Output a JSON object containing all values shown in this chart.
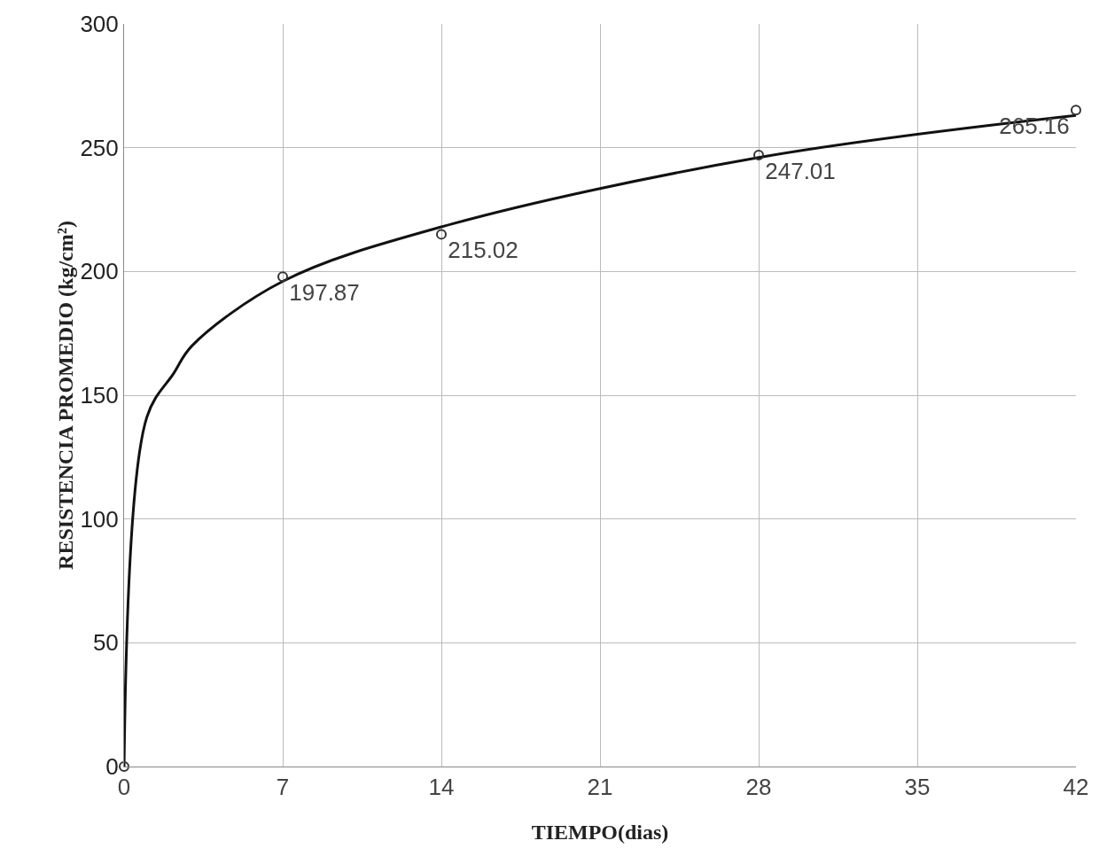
{
  "chart_data": {
    "type": "scatter",
    "xlabel": "TIEMPO(dias)",
    "ylabel": "RESISTENCIA PROMEDIO (kg/cm²)",
    "xlim": [
      0,
      42
    ],
    "xticks": [
      0,
      7,
      14,
      21,
      28,
      35,
      42
    ],
    "ylim": [
      0,
      300
    ],
    "yticks": [
      0,
      50,
      100,
      150,
      200,
      250,
      300
    ],
    "grid": true,
    "series": [
      {
        "type": "line",
        "color": "#111111",
        "marker": "none",
        "line_style": "solid",
        "x": [
          0,
          1,
          2.2,
          3,
          7,
          14,
          28,
          42
        ],
        "values": [
          0,
          141,
          159,
          170,
          196,
          218,
          246,
          263
        ]
      },
      {
        "color": "#333333",
        "marker": "circle",
        "x": [
          0,
          7,
          14,
          28,
          42
        ],
        "values": [
          0,
          197.87,
          215.02,
          247.01,
          265.16
        ],
        "value_labels": [
          null,
          "197.87",
          "215.02",
          "247.01",
          "265.16"
        ]
      }
    ]
  }
}
